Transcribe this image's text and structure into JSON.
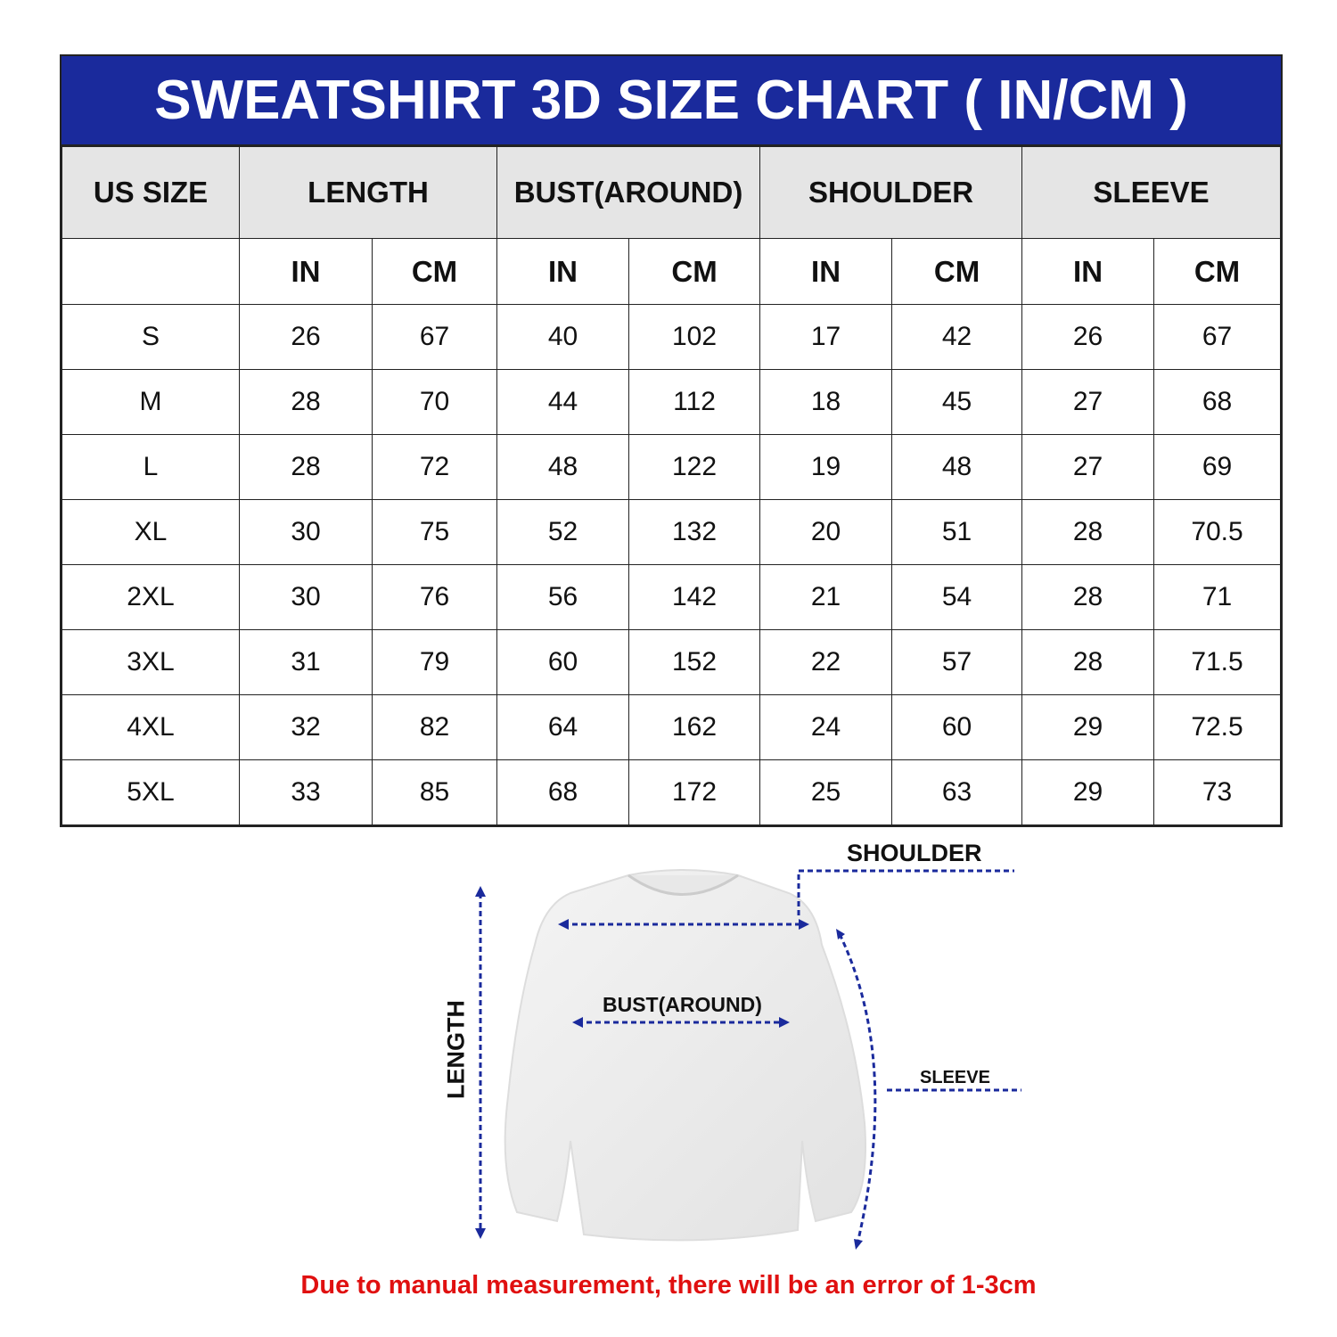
{
  "title": "SWEATSHIRT 3D SIZE CHART ( IN/CM )",
  "headers": {
    "size": "US SIZE",
    "length": "LENGTH",
    "bust": "BUST(AROUND)",
    "shoulder": "SHOULDER",
    "sleeve": "SLEEVE",
    "in": "IN",
    "cm": "CM"
  },
  "rows": [
    [
      "S",
      "26",
      "67",
      "40",
      "102",
      "17",
      "42",
      "26",
      "67"
    ],
    [
      "M",
      "28",
      "70",
      "44",
      "112",
      "18",
      "45",
      "27",
      "68"
    ],
    [
      "L",
      "28",
      "72",
      "48",
      "122",
      "19",
      "48",
      "27",
      "69"
    ],
    [
      "XL",
      "30",
      "75",
      "52",
      "132",
      "20",
      "51",
      "28",
      "70.5"
    ],
    [
      "2XL",
      "30",
      "76",
      "56",
      "142",
      "21",
      "54",
      "28",
      "71"
    ],
    [
      "3XL",
      "31",
      "79",
      "60",
      "152",
      "22",
      "57",
      "28",
      "71.5"
    ],
    [
      "4XL",
      "32",
      "82",
      "64",
      "162",
      "24",
      "60",
      "29",
      "72.5"
    ],
    [
      "5XL",
      "33",
      "85",
      "68",
      "172",
      "25",
      "63",
      "29",
      "73"
    ]
  ],
  "diagram": {
    "shoulder": "SHOULDER",
    "bust": "BUST(AROUND)",
    "length": "LENGTH",
    "sleeve": "SLEEVE"
  },
  "note": "Due to manual measurement, there will be an error of 1-3cm",
  "colors": {
    "header_bg": "#1a2a9c",
    "note": "#e01010",
    "measure_line": "#1a2a9c"
  }
}
